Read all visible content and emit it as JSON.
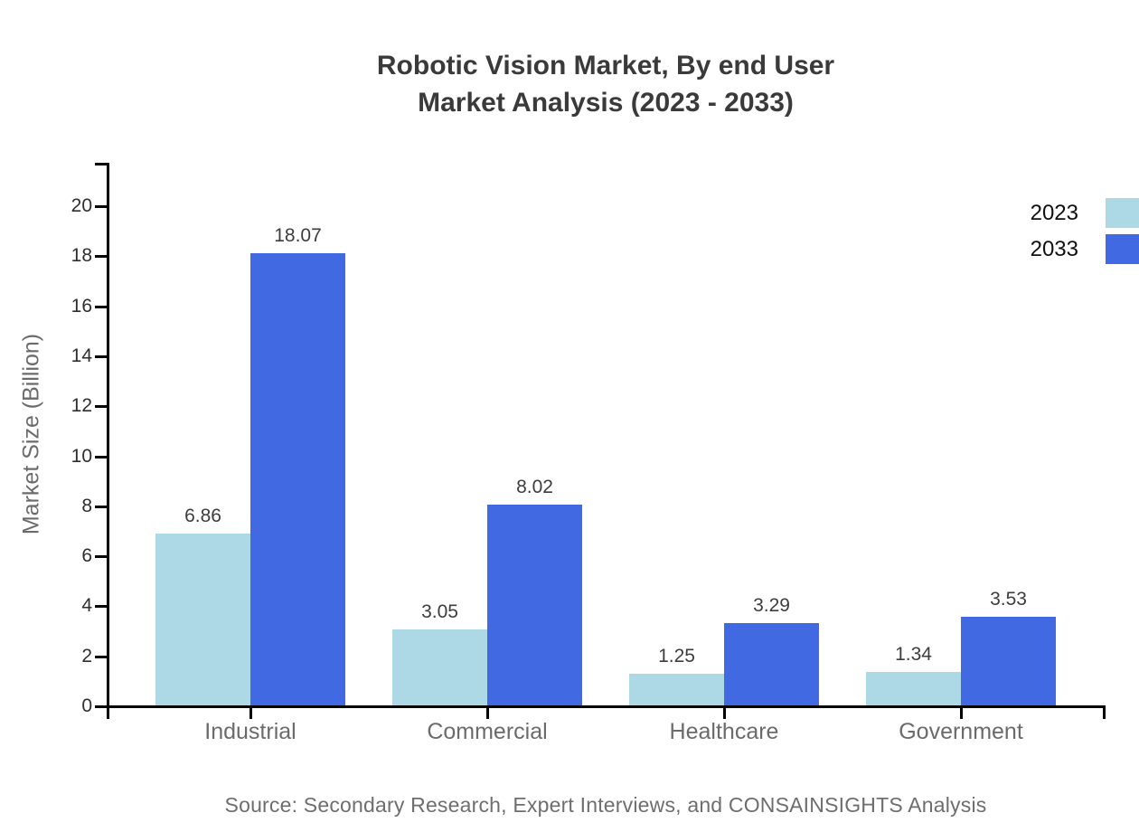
{
  "title": {
    "line1": "Robotic Vision Market, By end User",
    "line2": "Market Analysis (2023 - 2033)"
  },
  "source": "Source: Secondary Research, Expert Interviews, and CONSAINSIGHTS Analysis",
  "chart_data": {
    "type": "bar",
    "categories": [
      "Industrial",
      "Commercial",
      "Healthcare",
      "Government"
    ],
    "series": [
      {
        "name": "2023",
        "color": "#ADD8E6",
        "values": [
          6.86,
          3.05,
          1.25,
          1.34
        ]
      },
      {
        "name": "2033",
        "color": "#4169E1",
        "values": [
          18.07,
          8.02,
          3.29,
          3.53
        ]
      }
    ],
    "title": "Robotic Vision Market, By end User Market Analysis (2023 - 2033)",
    "xlabel": "",
    "ylabel": "Market Size (Billion)",
    "ylim": [
      0,
      20
    ],
    "yticks": [
      0,
      2,
      4,
      6,
      8,
      10,
      12,
      14,
      16,
      18,
      20
    ],
    "grid": false,
    "legend_position": "top-right",
    "value_label_decimals": 2,
    "axis_color": "#000000"
  }
}
